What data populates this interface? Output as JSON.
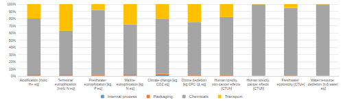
{
  "chart_data": {
    "type": "bar",
    "stacked": true,
    "grid": true,
    "legend": "bottom",
    "categories": [
      "Acidification [molc H+ eq]",
      "Terrestrial eutrophication [molc N eq]",
      "Freshwater eutrophication [kg P eq]",
      "Marine eutrophication [kg N eq]",
      "Climate change [kg CO2 eq]",
      "Ozone depletion [kg CFC-11 eq]",
      "Human toxicity, non-cancer effects [CTUh]",
      "Human toxicity, cancer effects [CTUh]",
      "Freshwater ecotoxicity [CTUe]",
      "Water resource depletion [m3 water eq]"
    ],
    "series": [
      {
        "name": "Internal process",
        "color": "#5b9bd5",
        "values": [
          0.5,
          0.5,
          0.3,
          0.5,
          1,
          0.3,
          0.3,
          0.2,
          0.3,
          0.2
        ]
      },
      {
        "name": "Packaging",
        "color": "#ed7d31",
        "values": [
          1.5,
          1.5,
          0.7,
          1.5,
          2,
          0.7,
          0.7,
          0.3,
          0.5,
          0.3
        ]
      },
      {
        "name": "Chemicals",
        "color": "#a5a5a5",
        "values": [
          78,
          61,
          91,
          70,
          76,
          74,
          81,
          99,
          94,
          99
        ]
      },
      {
        "name": "Transport",
        "color": "#ffc000",
        "values": [
          20,
          37,
          8,
          28,
          21,
          25,
          18,
          0.5,
          5.2,
          0.5
        ]
      }
    ],
    "ylim": [
      0,
      100
    ],
    "yticks": [
      {
        "value": 0,
        "label": "0%"
      },
      {
        "value": 10,
        "label": "10%"
      },
      {
        "value": 20,
        "label": "20%"
      },
      {
        "value": 30,
        "label": "30%"
      },
      {
        "value": 40,
        "label": "40%"
      },
      {
        "value": 50,
        "label": "50%"
      },
      {
        "value": 60,
        "label": "60%"
      },
      {
        "value": 70,
        "label": "70%"
      },
      {
        "value": 80,
        "label": "80%"
      },
      {
        "value": 90,
        "label": "90%"
      },
      {
        "value": 100,
        "label": "100%"
      }
    ]
  }
}
